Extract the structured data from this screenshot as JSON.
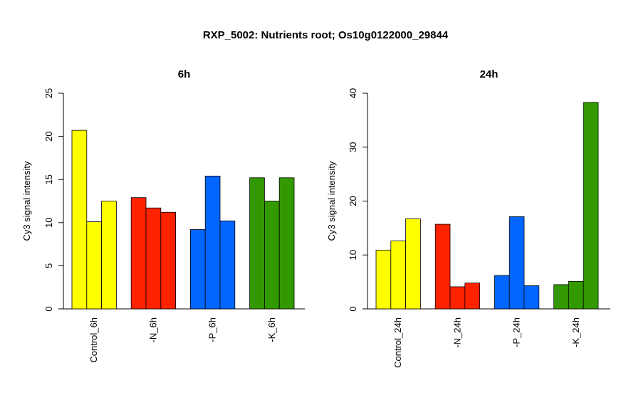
{
  "title": "RXP_5002: Nutrients root; Os10g0122000_29844",
  "chart_data": [
    {
      "type": "bar",
      "title": "6h",
      "ylabel": "Cy3 signal intensity",
      "ylim": [
        0,
        25
      ],
      "yticks": [
        0,
        5,
        10,
        15,
        20,
        25
      ],
      "categories": [
        "Control_6h",
        "-N_6h",
        "-P_6h",
        "-K_6h"
      ],
      "colors": [
        "#ffff00",
        "#ff2200",
        "#0066ff",
        "#339900"
      ],
      "groups": [
        [
          20.7,
          10.1,
          12.5
        ],
        [
          12.9,
          11.7,
          11.2
        ],
        [
          9.2,
          15.4,
          10.2
        ],
        [
          15.2,
          12.5,
          15.2
        ]
      ]
    },
    {
      "type": "bar",
      "title": "24h",
      "ylabel": "Cy3 signal intensity",
      "ylim": [
        0,
        40
      ],
      "yticks": [
        0,
        10,
        20,
        30,
        40
      ],
      "categories": [
        "Control_24h",
        "-N_24h",
        "-P_24h",
        "-K_24h"
      ],
      "colors": [
        "#ffff00",
        "#ff2200",
        "#0066ff",
        "#339900"
      ],
      "groups": [
        [
          10.9,
          12.6,
          16.7
        ],
        [
          15.7,
          4.1,
          4.8
        ],
        [
          6.2,
          17.1,
          4.3
        ],
        [
          4.5,
          5.1,
          38.3
        ]
      ]
    }
  ]
}
